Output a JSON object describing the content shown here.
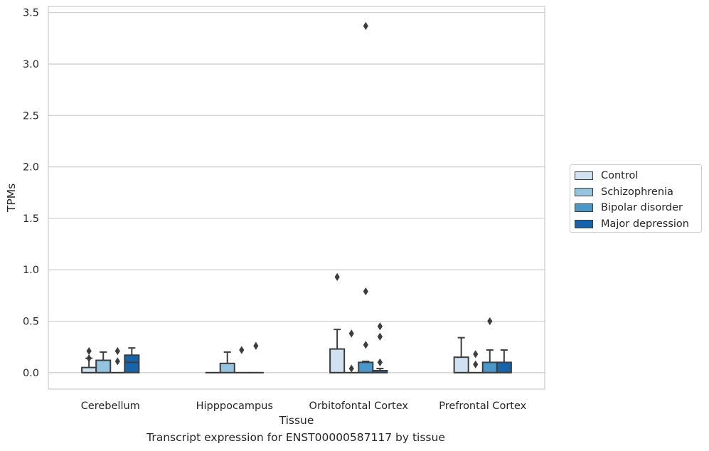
{
  "chart_data": {
    "type": "box",
    "title": "",
    "caption": "Transcript expression for ENST00000587117 by tissue",
    "xlabel": "Tissue",
    "ylabel": "TPMs",
    "ylim": [
      -0.16,
      3.56
    ],
    "yticks": [
      "0.0",
      "0.5",
      "1.0",
      "1.5",
      "2.0",
      "2.5",
      "3.0",
      "3.5"
    ],
    "ytick_values": [
      0,
      0.5,
      1.0,
      1.5,
      2.0,
      2.5,
      3.0,
      3.5
    ],
    "grid": true,
    "legend_position": "right",
    "categories": [
      "Cerebellum",
      "Hipppocampus",
      "Orbitofontal Cortex",
      "Prefrontal Cortex"
    ],
    "series": [
      {
        "name": "Control",
        "color": "#d0e1f2",
        "boxes": [
          {
            "q1": 0,
            "median": 0,
            "q3": 0.05,
            "whisker_low": 0,
            "whisker_high": 0.14,
            "outliers": [
              0.14,
              0.21
            ]
          },
          {
            "q1": 0,
            "median": 0,
            "q3": 0,
            "whisker_low": 0,
            "whisker_high": 0,
            "outliers": []
          },
          {
            "q1": 0,
            "median": 0,
            "q3": 0.23,
            "whisker_low": 0,
            "whisker_high": 0.42,
            "outliers": [
              0.93
            ]
          },
          {
            "q1": 0,
            "median": 0,
            "q3": 0.15,
            "whisker_low": 0,
            "whisker_high": 0.34,
            "outliers": []
          }
        ]
      },
      {
        "name": "Schizophrenia",
        "color": "#94c4df",
        "boxes": [
          {
            "q1": 0,
            "median": 0,
            "q3": 0.12,
            "whisker_low": 0,
            "whisker_high": 0.2,
            "outliers": []
          },
          {
            "q1": 0,
            "median": 0,
            "q3": 0.09,
            "whisker_low": 0,
            "whisker_high": 0.2,
            "outliers": []
          },
          {
            "q1": 0,
            "median": 0,
            "q3": 0,
            "whisker_low": 0,
            "whisker_high": 0,
            "outliers": [
              0.04,
              0.38
            ]
          },
          {
            "q1": 0,
            "median": 0,
            "q3": 0,
            "whisker_low": 0,
            "whisker_high": 0,
            "outliers": [
              0.08,
              0.18
            ]
          }
        ]
      },
      {
        "name": "Bipolar disorder",
        "color": "#4a98c9",
        "boxes": [
          {
            "q1": 0,
            "median": 0,
            "q3": 0,
            "whisker_low": 0,
            "whisker_high": 0,
            "outliers": [
              0.11,
              0.21
            ]
          },
          {
            "q1": 0,
            "median": 0,
            "q3": 0,
            "whisker_low": 0,
            "whisker_high": 0,
            "outliers": [
              0.22
            ]
          },
          {
            "q1": 0,
            "median": 0,
            "q3": 0.1,
            "whisker_low": 0,
            "whisker_high": 0.11,
            "outliers": [
              0.27,
              0.79,
              3.37
            ]
          },
          {
            "q1": 0,
            "median": 0,
            "q3": 0.1,
            "whisker_low": 0,
            "whisker_high": 0.22,
            "outliers": [
              0.5
            ]
          }
        ]
      },
      {
        "name": "Major depression",
        "color": "#1764ab",
        "boxes": [
          {
            "q1": 0,
            "median": 0.1,
            "q3": 0.17,
            "whisker_low": 0,
            "whisker_high": 0.24,
            "outliers": []
          },
          {
            "q1": 0,
            "median": 0,
            "q3": 0,
            "whisker_low": 0,
            "whisker_high": 0,
            "outliers": [
              0.26
            ]
          },
          {
            "q1": 0,
            "median": 0,
            "q3": 0.02,
            "whisker_low": 0,
            "whisker_high": 0.04,
            "outliers": [
              0.1,
              0.35,
              0.45
            ]
          },
          {
            "q1": 0,
            "median": 0,
            "q3": 0.1,
            "whisker_low": 0,
            "whisker_high": 0.22,
            "outliers": []
          }
        ]
      }
    ]
  }
}
